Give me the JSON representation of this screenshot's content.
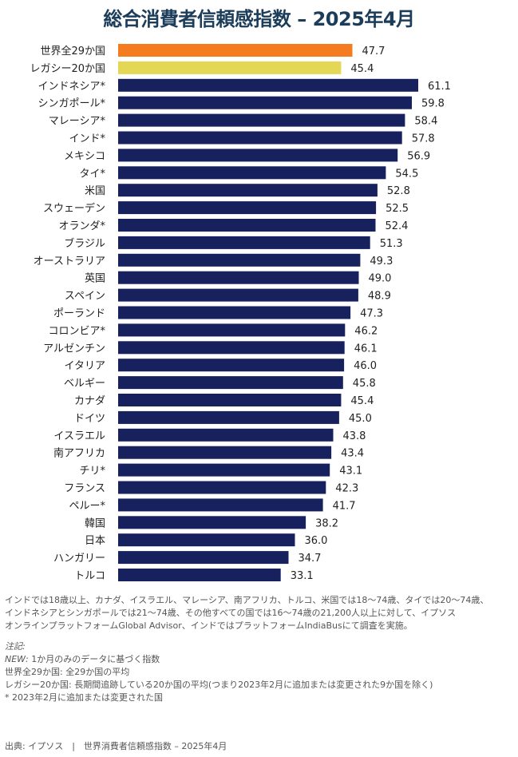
{
  "title": "総合消費者信頼感指数 – 2025年4月",
  "colors": {
    "highlight_global": "#f47c1e",
    "highlight_legacy": "#e4d755",
    "country": "#16215e",
    "title": "#1c3d5a"
  },
  "chart_data": {
    "type": "bar",
    "orientation": "horizontal",
    "categories": [
      "世界全29か国",
      "レガシー20か国",
      "インドネシア*",
      "シンガポール*",
      "マレーシア*",
      "インド*",
      "メキシコ",
      "タイ*",
      "米国",
      "スウェーデン",
      "オランダ*",
      "ブラジル",
      "オーストラリア",
      "英国",
      "スペイン",
      "ポーランド",
      "コロンビア*",
      "アルゼンチン",
      "イタリア",
      "ベルギー",
      "カナダ",
      "ドイツ",
      "イスラエル",
      "南アフリカ",
      "チリ*",
      "フランス",
      "ペルー*",
      "韓国",
      "日本",
      "ハンガリー",
      "トルコ"
    ],
    "values": [
      47.7,
      45.4,
      61.1,
      59.8,
      58.4,
      57.8,
      56.9,
      54.5,
      52.8,
      52.5,
      52.4,
      51.3,
      49.3,
      49.0,
      48.9,
      47.3,
      46.2,
      46.1,
      46.0,
      45.8,
      45.4,
      45.0,
      43.8,
      43.4,
      43.1,
      42.3,
      41.7,
      38.2,
      36.0,
      34.7,
      33.1
    ],
    "value_labels": [
      "47.7",
      "45.4",
      "61.1",
      "59.8",
      "58.4",
      "57.8",
      "56.9",
      "54.5",
      "52.8",
      "52.5",
      "52.4",
      "51.3",
      "49.3",
      "49.0",
      "48.9",
      "47.3",
      "46.2",
      "46.1",
      "46.0",
      "45.8",
      "45.4",
      "45.0",
      "43.8",
      "43.4",
      "43.1",
      "42.3",
      "41.7",
      "38.2",
      "36.0",
      "34.7",
      "33.1"
    ],
    "xlim": [
      0,
      61.1
    ],
    "grid": false,
    "legend": "none"
  },
  "notes": {
    "method": [
      "インドでは18歳以上、カナダ、イスラエル、マレーシア、南アフリカ、トルコ、米国では18〜74歳、タイでは20〜74歳、",
      "インドネシアとシンガポールでは21〜74歳、その他すべての国では16〜74歳の21,200人以上に対して、イプソス",
      "オンラインプラットフォームGlobal Advisor、インドではプラットフォームIndiaBusにて調査を実施。"
    ],
    "heading": "注記:",
    "new_label": "NEW:",
    "new_text": " 1か月のみのデータに基づく指数",
    "items": [
      "世界全29か国: 全29か国の平均",
      "レガシー20か国: 長期間追跡している20か国の平均(つまり2023年2月に追加または変更された9か国を除く)",
      "* 2023年2月に追加または変更された国"
    ]
  },
  "source": "出典: イプソス　|　世界消費者信頼感指数 – 2025年4月"
}
